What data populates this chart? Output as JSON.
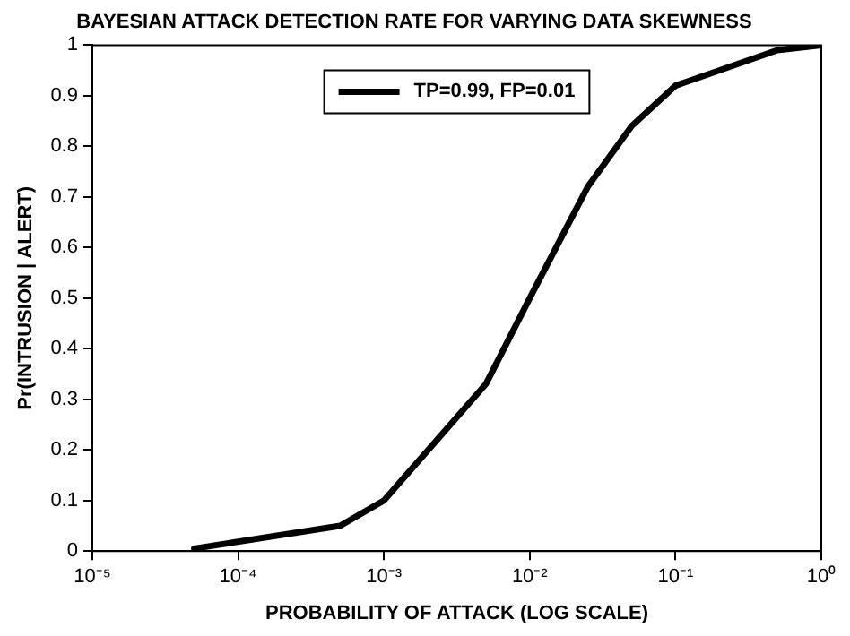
{
  "chart_data": {
    "type": "line",
    "title": "BAYESIAN ATTACK DETECTION RATE FOR VARYING DATA SKEWNESS",
    "xlabel": "PROBABILITY OF ATTACK (LOG SCALE)",
    "ylabel": "Pr(INTRUSION | ALERT)",
    "log": "x",
    "xlim": [
      1e-05,
      1
    ],
    "xticks": [
      {
        "value": 1e-05,
        "label": "10⁻⁵"
      },
      {
        "value": 0.0001,
        "label": "10⁻⁴"
      },
      {
        "value": 0.001,
        "label": "10⁻³"
      },
      {
        "value": 0.01,
        "label": "10⁻²"
      },
      {
        "value": 0.1,
        "label": "10⁻¹"
      },
      {
        "value": 1,
        "label": "10⁰"
      }
    ],
    "ylim": [
      0,
      1
    ],
    "yticks": [
      0,
      0.1,
      0.2,
      0.3,
      0.4,
      0.5,
      0.6,
      0.7,
      0.8,
      0.9,
      1
    ],
    "legend": "top",
    "marker": "none",
    "line_style": "solid",
    "grid": false,
    "series": [
      {
        "name": "TP=0.99, FP=0.01",
        "color": "#000000",
        "x": [
          5e-05,
          0.0005,
          0.001,
          0.005,
          0.01,
          0.025,
          0.05,
          0.1,
          0.5,
          1
        ],
        "values": [
          0.005,
          0.05,
          0.1,
          0.33,
          0.5,
          0.72,
          0.84,
          0.92,
          0.99,
          1
        ]
      }
    ]
  }
}
